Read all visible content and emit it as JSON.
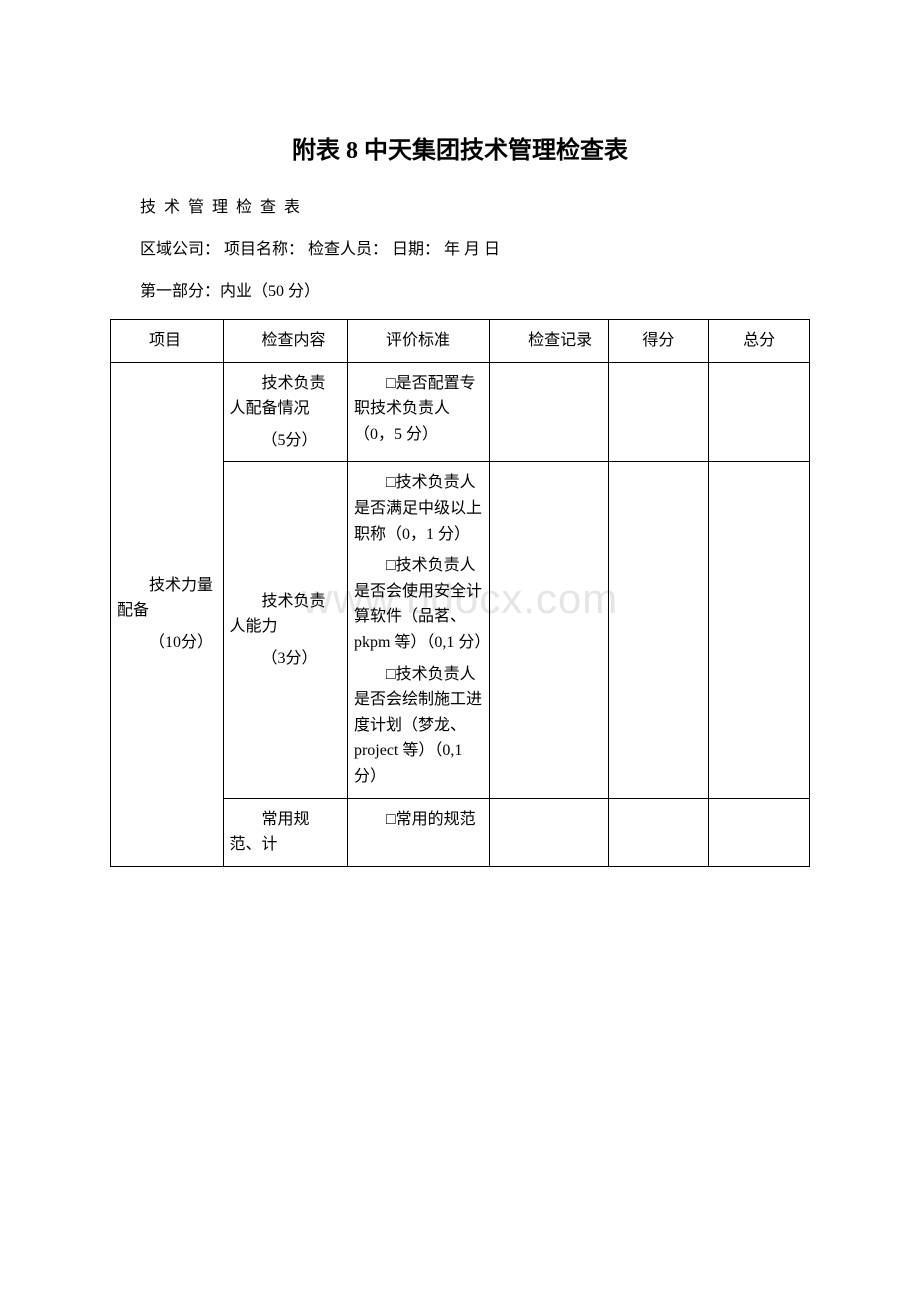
{
  "title": "附表 8 中天集团技术管理检查表",
  "spaced_header": "技 术 管 理 检 查 表",
  "meta_line": "区域公司：  项目名称：  检查人员：  日期：  年 月 日",
  "section_line": "第一部分：内业（50 分）",
  "watermark": "www.bdocx.com",
  "table": {
    "headers": {
      "project": "项目",
      "check_content": "检查内容",
      "eval_standard": "评价标准",
      "check_record": "检查记录",
      "score": "得分",
      "total": "总分"
    },
    "row1_col1_p1": "技术力量配备",
    "row1_col1_p2": "（10分）",
    "r1c2_p1": "技术负责人配备情况",
    "r1c2_p2": "（5分）",
    "r1c3_p1": "□是否配置专职技术负责人（0，5 分）",
    "r2c2_p1": "技术负责人能力",
    "r2c2_p2": "（3分）",
    "r2c3_p1": "□技术负责人是否满足中级以上职称（0，1 分）",
    "r2c3_p2": "□技术负责人是否会使用安全计算软件（品茗、pkpm 等）（0,1 分）",
    "r2c3_p3": "□技术负责人是否会绘制施工进度计划（梦龙、project 等）（0,1 分）",
    "r3c2_p1": "常用规范、计",
    "r3c3_p1": "□常用的规范"
  }
}
